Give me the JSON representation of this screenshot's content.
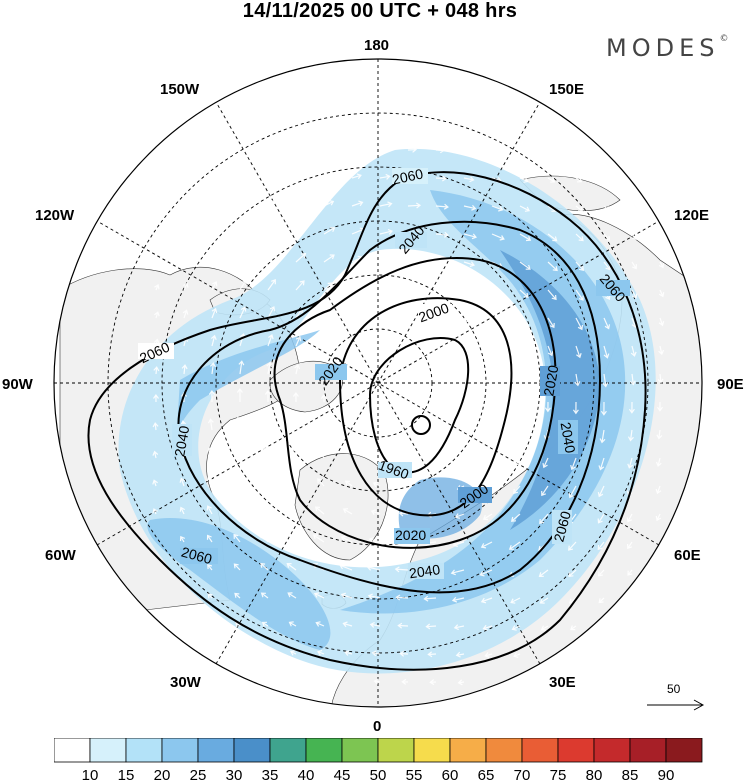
{
  "header": {
    "title": "14/11/2025  00 UTC  + 048 hrs",
    "brand": "MODES",
    "brand_mark": "©"
  },
  "map_labels": {
    "lon_180": "180",
    "lon_150w": "150W",
    "lon_150e": "150E",
    "lon_120w": "120W",
    "lon_120e": "120E",
    "lon_90w": "90W",
    "lon_90e": "90E",
    "lon_60w": "60W",
    "lon_60e": "60E",
    "lon_30w": "30W",
    "lon_30e": "30E",
    "lon_0": "0"
  },
  "contour_labels": [
    {
      "id": "c1",
      "text": "2060"
    },
    {
      "id": "c2",
      "text": "2040"
    },
    {
      "id": "c3",
      "text": "2000"
    },
    {
      "id": "c4",
      "text": "2060"
    },
    {
      "id": "c5",
      "text": "2060"
    },
    {
      "id": "c6",
      "text": "2020"
    },
    {
      "id": "c7",
      "text": "2020"
    },
    {
      "id": "c8",
      "text": "2040"
    },
    {
      "id": "c9",
      "text": "2040"
    },
    {
      "id": "c10",
      "text": "1960"
    },
    {
      "id": "c11",
      "text": "2000"
    },
    {
      "id": "c12",
      "text": "2020"
    },
    {
      "id": "c13",
      "text": "2060"
    },
    {
      "id": "c14",
      "text": "2060"
    },
    {
      "id": "c15",
      "text": "2040"
    }
  ],
  "reference_vector": {
    "value": "50"
  },
  "colorbar": {
    "ticks": [
      "10",
      "15",
      "20",
      "25",
      "30",
      "35",
      "40",
      "45",
      "50",
      "55",
      "60",
      "65",
      "70",
      "75",
      "80",
      "85",
      "90"
    ],
    "colors": [
      "#ffffff",
      "#d6f1fb",
      "#b3e2f8",
      "#8cc7ee",
      "#69abe0",
      "#4a8fc9",
      "#3fa48e",
      "#46b452",
      "#7dc552",
      "#bdd54b",
      "#f6dc4c",
      "#f6ad48",
      "#f08a3d",
      "#e95d35",
      "#dc3a2f",
      "#c42a2c",
      "#a71f27",
      "#8a1a1e"
    ]
  }
}
